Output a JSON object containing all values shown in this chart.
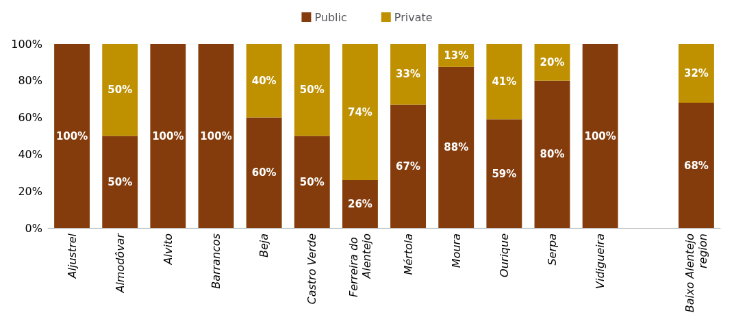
{
  "chart_data": {
    "type": "bar",
    "stacked": true,
    "legend": "top",
    "grid": false,
    "categories": [
      "Aljustrel",
      "Almodôvar",
      "Alvito",
      "Barrancos",
      "Beja",
      "Castro Verde",
      "Ferreira do Alentejo",
      "Mértola",
      "Moura",
      "Ourique",
      "Serpa",
      "Vidigueira",
      null,
      "Baixo Alentejo region"
    ],
    "series": [
      {
        "name": "Public",
        "color": "#843c0c",
        "values": [
          100,
          50,
          100,
          100,
          60,
          50,
          26,
          67,
          87.5,
          59,
          80,
          100,
          null,
          68
        ],
        "value_labels": [
          "100%",
          "50%",
          "100%",
          "100%",
          "60%",
          "50%",
          "26%",
          "67%",
          "88%",
          "59%",
          "80%",
          "100%",
          null,
          "68%"
        ]
      },
      {
        "name": "Private",
        "color": "#bf9000",
        "values": [
          null,
          50,
          null,
          null,
          40,
          50,
          74,
          33,
          12.5,
          41,
          20,
          null,
          null,
          32
        ],
        "value_labels": [
          null,
          "50%",
          null,
          null,
          "40%",
          "50%",
          "74%",
          "33%",
          "13%",
          "41%",
          "20%",
          null,
          null,
          "32%"
        ]
      }
    ],
    "ylim": [
      0,
      100
    ],
    "yticks": [
      {
        "value": 0,
        "label": "0%"
      },
      {
        "value": 20,
        "label": "20%"
      },
      {
        "value": 40,
        "label": "40%"
      },
      {
        "value": 60,
        "label": "60%"
      },
      {
        "value": 80,
        "label": "80%"
      },
      {
        "value": 100,
        "label": "100%"
      }
    ]
  }
}
